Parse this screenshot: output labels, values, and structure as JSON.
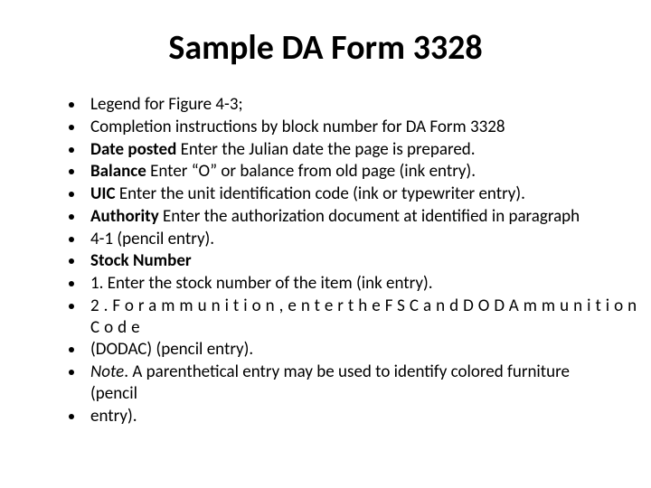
{
  "title": "Sample DA Form 3328",
  "bullets": {
    "b0": "Legend for Figure 4-3;",
    "b1": "Completion instructions by block number for DA Form 3328",
    "b2_bold": "Date posted",
    "b2_rest": " Enter the Julian date the page is prepared.",
    "b3_bold": "Balance",
    "b3_rest": " Enter “O” or balance from old page (ink entry).",
    "b4_bold": "UIC",
    "b4_rest": " Enter the unit identification code (ink or typewriter entry).",
    "b5_bold": "Authority",
    "b5_rest": " Enter the authorization document at identified in paragraph",
    "b6": "4-1 (pencil entry).",
    "b7_bold": "Stock Number",
    "b8": "1. Enter the stock number of the item (ink entry).",
    "b9_sp1": "2.Forammunition,entertheFSCandDODAmmunition",
    "b9_sp2": "Code",
    "b10": "(DODAC) (pencil entry).",
    "b11_it": "Note",
    "b11_rest": ". A parenthetical entry may be used to identify colored furniture (pencil",
    "b12": "entry)."
  }
}
